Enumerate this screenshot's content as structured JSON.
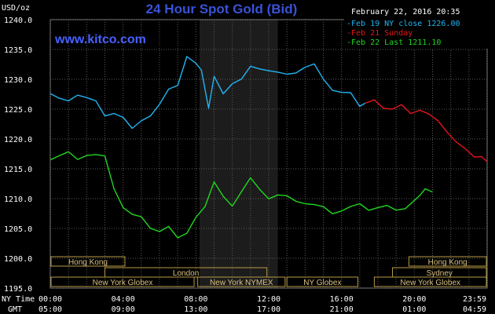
{
  "header": {
    "unit": "USD/oz",
    "title": "24 Hour Spot Gold (Bid)",
    "date": "February 22, 2016 20:35",
    "site": "www.kitco.com"
  },
  "chart_data": {
    "type": "line",
    "title": "24 Hour Spot Gold (Bid)",
    "ylabel": "USD/oz",
    "ylim": [
      1195,
      1240
    ],
    "yticks": [
      "1240.0",
      "1235.0",
      "1230.0",
      "1225.0",
      "1220.0",
      "1215.0",
      "1210.0",
      "1205.0",
      "1200.0",
      "1195.0"
    ],
    "ny_time_label": "NY Time",
    "gmt_label": "GMT",
    "ny_ticks": [
      "00:00",
      "04:00",
      "08:00",
      "12:00",
      "16:00",
      "20:00",
      "23:59"
    ],
    "gmt_ticks": [
      "05:00",
      "09:00",
      "13:00",
      "17:00",
      "21:00",
      "01:00",
      "04:59"
    ],
    "xlim": [
      0,
      24
    ],
    "grid": true,
    "legend_position": "top-right",
    "highlight_hours": [
      8.2,
      12.5
    ],
    "series": [
      {
        "name": "Feb 19 NY close 1226.00",
        "color": "#22b4f2",
        "x": [
          0,
          0.5,
          1,
          1.5,
          2,
          2.5,
          3,
          3.5,
          4,
          4.5,
          5,
          5.5,
          6,
          6.5,
          7,
          7.5,
          8,
          8.3,
          8.7,
          9,
          9.5,
          10,
          10.5,
          11,
          11.5,
          12,
          12.5,
          13,
          13.5,
          14,
          14.5,
          15,
          15.5,
          16,
          16.5,
          17,
          17.3
        ],
        "y": [
          1227.6,
          1227,
          1226.2,
          1226.8,
          1227.3,
          1226.4,
          1223.5,
          1224.8,
          1223.8,
          1221.6,
          1222.5,
          1224.2,
          1225.8,
          1228,
          1229.5,
          1234,
          1232.5,
          1231,
          1225.5,
          1230.5,
          1227.2,
          1229.8,
          1230.2,
          1232,
          1231.2,
          1231.8,
          1231.2,
          1230.5,
          1231.6,
          1232.2,
          1232.4,
          1229.5,
          1228.5,
          1227.8,
          1227.4,
          1226,
          1226
        ]
      },
      {
        "name": "Feb 21 Sunday",
        "color": "#e8151a",
        "x": [
          17.3,
          17.8,
          18.3,
          18.8,
          19.3,
          19.8,
          20.3,
          20.8,
          21.3,
          21.8,
          22.3,
          22.8,
          23.3,
          23.7,
          24
        ],
        "y": [
          1226,
          1226,
          1225.5,
          1225,
          1225.4,
          1224.8,
          1225,
          1224,
          1222.5,
          1221.5,
          1219.5,
          1218,
          1217.5,
          1217.2,
          1216.2
        ]
      },
      {
        "name": "Feb 22 Last 1211.10",
        "color": "#1fd81f",
        "x": [
          0,
          0.5,
          1,
          1.5,
          2,
          2.5,
          3,
          3.5,
          4,
          4.5,
          5,
          5.5,
          6,
          6.5,
          7,
          7.5,
          8,
          8.5,
          9,
          9.5,
          10,
          10.5,
          11,
          11.5,
          12,
          12.5,
          13,
          13.5,
          14,
          14.5,
          15,
          15.5,
          16,
          16.5,
          17,
          17.5,
          18,
          18.5,
          19,
          19.5,
          20,
          20.3,
          20.6,
          21
        ],
        "y": [
          1216.5,
          1217.2,
          1217.5,
          1217.1,
          1217.4,
          1217.2,
          1216.6,
          1212,
          1208.5,
          1207,
          1207.5,
          1205.2,
          1204.3,
          1204.8,
          1203.8,
          1204.2,
          1206.5,
          1209.2,
          1213,
          1210.2,
          1208.2,
          1211.5,
          1213.5,
          1211.2,
          1210.5,
          1210.8,
          1210.3,
          1209,
          1209.5,
          1209,
          1208.3,
          1208,
          1208.1,
          1208.5,
          1208.6,
          1208.4,
          1208.5,
          1208.5,
          1208.6,
          1208.5,
          1209.5,
          1210,
          1212,
          1211.1
        ]
      }
    ],
    "sessions": [
      {
        "label": "Hong Kong",
        "row": 0,
        "start": 0,
        "end": 4.1
      },
      {
        "label": "Hong Kong",
        "row": 0,
        "start": 19.7,
        "end": 24
      },
      {
        "label": "London",
        "row": 1,
        "start": 3,
        "end": 11.9
      },
      {
        "label": "Sydney",
        "row": 1,
        "start": 18.8,
        "end": 24
      },
      {
        "label": "New York Globex",
        "row": 2,
        "start": 0,
        "end": 7.9
      },
      {
        "label": "New York NYMEX",
        "row": 2,
        "start": 8.1,
        "end": 12.9
      },
      {
        "label": "NY Globex",
        "row": 2,
        "start": 13,
        "end": 16.9
      },
      {
        "label": "New York Globex",
        "row": 2,
        "start": 17.8,
        "end": 24
      }
    ]
  }
}
